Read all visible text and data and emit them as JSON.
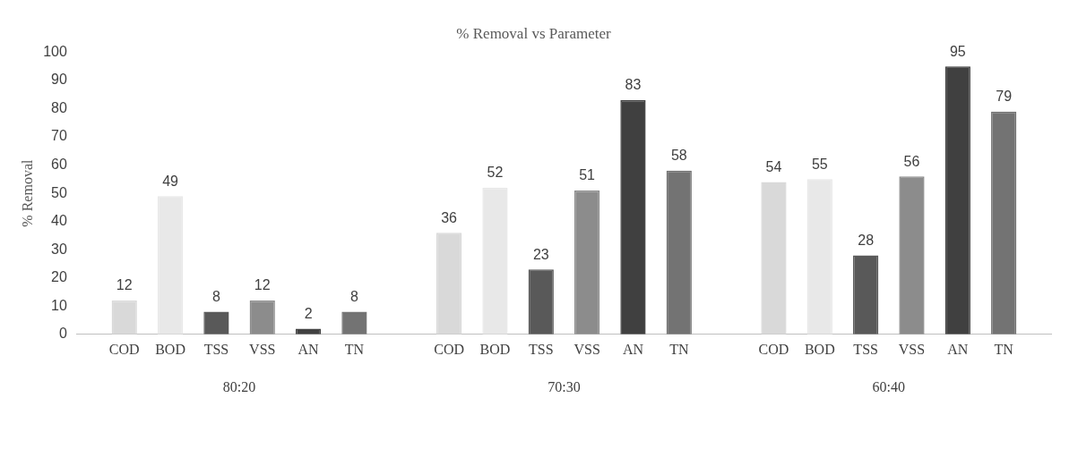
{
  "chart_data": {
    "type": "bar",
    "title": "% Removal vs Parameter",
    "ylabel": "% Removal",
    "categories": [
      "80:20",
      "70:30",
      "60:40"
    ],
    "series": [
      {
        "name": "COD",
        "color": "#d9d9d9",
        "values": [
          12,
          36,
          54
        ]
      },
      {
        "name": "BOD",
        "color": "#e8e8e8",
        "values": [
          49,
          52,
          55
        ]
      },
      {
        "name": "TSS",
        "color": "#595959",
        "values": [
          8,
          23,
          28
        ]
      },
      {
        "name": "VSS",
        "color": "#8c8c8c",
        "values": [
          12,
          51,
          56
        ]
      },
      {
        "name": "AN",
        "color": "#404040",
        "values": [
          2,
          83,
          95
        ]
      },
      {
        "name": "TN",
        "color": "#737373",
        "values": [
          8,
          58,
          79
        ]
      }
    ],
    "ylim": [
      0,
      100
    ],
    "yticks": [
      0,
      10,
      20,
      30,
      40,
      50,
      60,
      70,
      80,
      90,
      100
    ],
    "grid": false,
    "legend": "bottom",
    "data_labels": true
  }
}
